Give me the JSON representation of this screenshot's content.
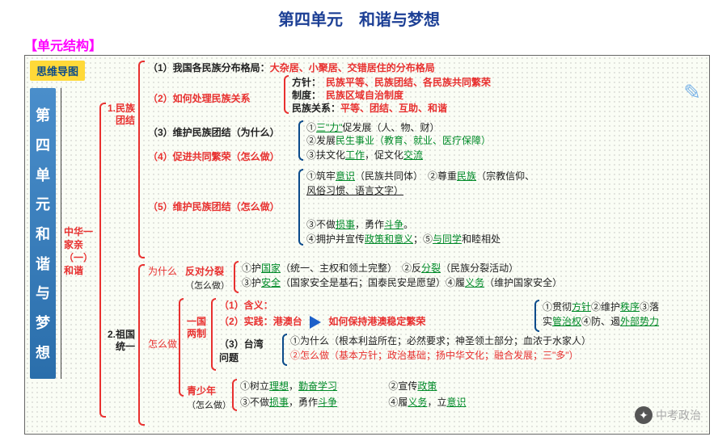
{
  "title": "第四单元　和谐与梦想",
  "section_label": "【单元结构】",
  "mindmap_badge": "思维导图",
  "sidebar_chars": [
    "第",
    "四",
    "单",
    "元",
    "和",
    "谐",
    "与",
    "梦",
    "想"
  ],
  "root_label": {
    "l1": "中华一",
    "l2": "家亲",
    "l3": "（一）",
    "l4": "和谐"
  },
  "b1": {
    "idx": "1.",
    "name": "民族团结",
    "L1a": "（1）我国各民族分布格局：",
    "L1b": "大杂居、小聚居、交错居住的分布格局",
    "L2": "（2）如何处理民族关系",
    "L2_fangzhen_k": "方针：",
    "L2_fangzhen_v": "民族平等、民族团结、各民族共同繁荣",
    "L2_zhidu_k": "制度：",
    "L2_zhidu_v": "民族区域自治制度",
    "L2_guanxi_k": "民族关系：",
    "L2_guanxi_v": "平等、团结、互助、和谐",
    "L3": "（3）维护民族团结（为什么）",
    "L3_1a": "①",
    "L3_1b": "三\"力\"",
    "L3_1c": "促发展（人、物、财）",
    "L3_2a": "②发展",
    "L3_2b": "民生事业（教育、就业、医疗保障）",
    "L4": "（4）促进共同繁荣（怎么做）",
    "L4_1a": "③扶文化",
    "L4_1b": "工作",
    "L4_1c": "，促文化",
    "L4_1d": "交流",
    "L5": "（5）维护民族团结（怎么做）",
    "L5_1a": "①筑牢",
    "L5_1b": "意识",
    "L5_1c": "（民族共同体）　②尊重",
    "L5_1d": "民族",
    "L5_1e": "（宗教信仰、",
    "L5_2": "风俗习惯、语言文字）",
    "L5_3a": "③不做",
    "L5_3b": "损事",
    "L5_3c": "，勇作",
    "L5_3d": "斗争",
    "L5_3e": "。",
    "L5_4a": "④拥护并宣传",
    "L5_4b": "政策和意义",
    "L5_4c": "；⑤",
    "L5_4d": "与同学",
    "L5_4e": "和睦相处"
  },
  "b2": {
    "idx": "2.",
    "name": "祖国统一",
    "wsm": "为什么",
    "zmz": "怎么做",
    "fdfl": "反对分裂",
    "fdfl_sub": "（怎么做）",
    "fdfl_1a": "①护",
    "fdfl_1b": "国家",
    "fdfl_1c": "（统一、主权和领土完整）　②反",
    "fdfl_1d": "分裂",
    "fdfl_1e": "（民族分裂活动）",
    "fdfl_2a": "③护",
    "fdfl_2b": "安全",
    "fdfl_2c": "（国家安全是基石；国泰民安是愿望）④履",
    "fdfl_2d": "义务",
    "fdfl_2e": "（维护国家安全）",
    "yglz": "一国两制",
    "yglz_1": "（1）含义：",
    "yglz_2": "（2）实践：",
    "gat": "港澳台",
    "gat_q": "如何保持港澳稳定繁荣",
    "gat_a1a": "①贯彻",
    "gat_a1b": "方针",
    "gat_a1c": "②维护",
    "gat_a1d": "秩序",
    "gat_a1e": "③落",
    "gat_a2a": "实",
    "gat_a2b": "管治权",
    "gat_a2c": "④防、遏",
    "gat_a2d": "外部势力",
    "tw": "（3）台湾问题",
    "tw_1": "①为什么（根本利益所在；必然要求；神圣领土部分；血浓于水家人）",
    "tw_2": "②怎么做（基本方针；政治基础；扬中华文化；融合发展；三\"多\"）",
    "qsn": "青少年",
    "qsn_sub": "（怎么做）",
    "qsn_1a": "①树立",
    "qsn_1b": "理想",
    "qsn_1c": "，",
    "qsn_1d": "勤奋学习",
    "qsn_2a": "②宣传",
    "qsn_2b": "政策",
    "qsn_3a": "③不做",
    "qsn_3b": "损事",
    "qsn_3c": "，勇作",
    "qsn_3d": "斗争",
    "qsn_4a": "④履",
    "qsn_4b": "义务",
    "qsn_4c": "，立",
    "qsn_4d": "意识"
  },
  "watermark": "中考政治",
  "colors": {
    "title": "#1c3f95",
    "section": "#ff00ff",
    "red": "#e8302f",
    "blue": "#0a4a8a",
    "green": "#008a28",
    "black": "#222222",
    "badge_bg": "#ffd938",
    "sidebar_bg": "#3a7ebb"
  }
}
